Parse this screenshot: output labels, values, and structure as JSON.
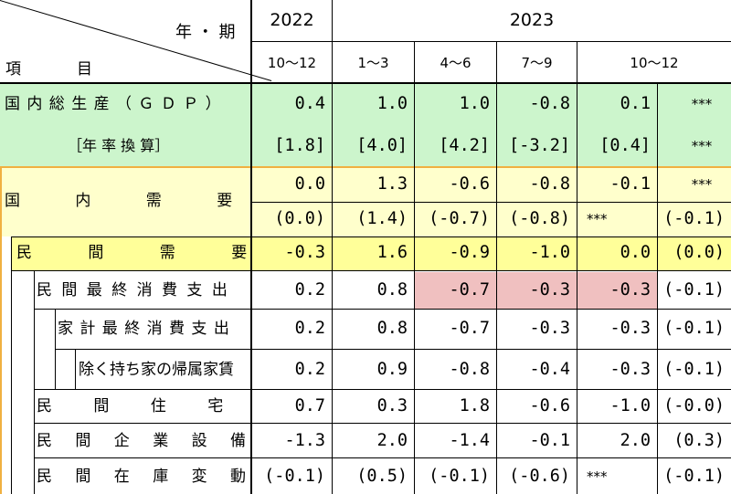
{
  "header": {
    "corner_top": "年 ・ 期",
    "corner_bottom_a": "項",
    "corner_bottom_b": "目",
    "year_2022": "2022",
    "year_2023": "2023",
    "quarters": [
      "10～12",
      "1～3",
      "4～6",
      "7～9",
      "10～12"
    ]
  },
  "rows": [
    {
      "label": "国 内 総 生 産 （ Ｇ Ｄ Ｐ ）",
      "values": [
        "0.4",
        "1.0",
        "1.0",
        "-0.8",
        "0.1",
        "***"
      ]
    },
    {
      "label": "［年 率 換 算］",
      "values": [
        "[1.8]",
        "[4.0]",
        "[4.2]",
        "[-3.2]",
        "[0.4]",
        "***"
      ]
    },
    {
      "label": "国 内 需 要",
      "values": [
        "0.0",
        "1.3",
        "-0.6",
        "-0.8",
        "-0.1",
        "***"
      ]
    },
    {
      "label": "",
      "values": [
        "(0.0)",
        "(1.4)",
        "(-0.7)",
        "(-0.8)",
        "***",
        "(-0.1)"
      ]
    },
    {
      "label": "民 間 需 要",
      "values": [
        "-0.3",
        "1.6",
        "-0.9",
        "-1.0",
        "0.0",
        "(0.0)"
      ]
    },
    {
      "label": "民 間 最 終 消 費 支 出",
      "values": [
        "0.2",
        "0.8",
        "-0.7",
        "-0.3",
        "-0.3",
        "(-0.1)"
      ]
    },
    {
      "label": "家 計 最 終 消 費 支 出",
      "values": [
        "0.2",
        "0.8",
        "-0.7",
        "-0.3",
        "-0.3",
        "(-0.1)"
      ]
    },
    {
      "label": "除く持ち家の帰属家賃",
      "values": [
        "0.2",
        "0.9",
        "-0.8",
        "-0.4",
        "-0.3",
        "(-0.1)"
      ]
    },
    {
      "label": "民 間 住 宅",
      "values": [
        "0.7",
        "0.3",
        "1.8",
        "-0.6",
        "-1.0",
        "(-0.0)"
      ]
    },
    {
      "label": "民 間 企 業 設 備",
      "values": [
        "-1.3",
        "2.0",
        "-1.4",
        "-0.1",
        "2.0",
        "(0.3)"
      ]
    },
    {
      "label": "民 間 在 庫 変 動",
      "values": [
        "(-0.1)",
        "(0.5)",
        "(-0.1)",
        "(-0.6)",
        "***",
        "(-0.1)"
      ]
    }
  ],
  "colors": {
    "gdp_green": "#ccf5cc",
    "domestic_light_yellow": "#ffffcc",
    "private_yellow": "#ffff99",
    "highlight_pink": "#f0c0c0",
    "orange_border": "#f0b040"
  }
}
